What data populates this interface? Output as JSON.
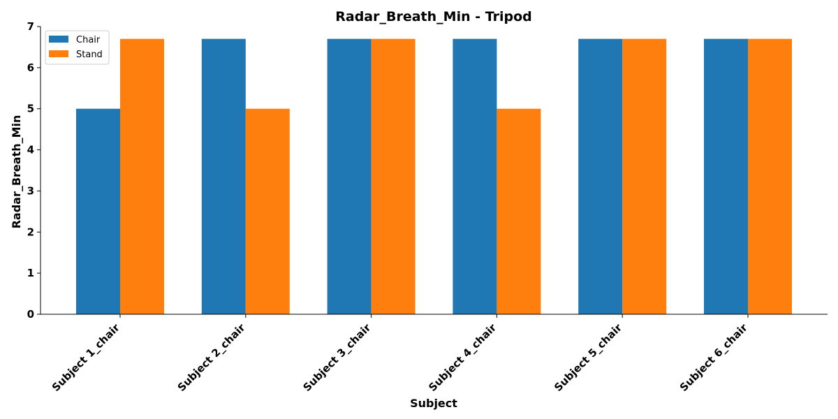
{
  "chart_data": {
    "type": "bar",
    "title": "Radar_Breath_Min - Tripod",
    "xlabel": "Subject",
    "ylabel": "Radar_Breath_Min",
    "categories": [
      "Subject 1_chair",
      "Subject 2_chair",
      "Subject 3_chair",
      "Subject 4_chair",
      "Subject 5_chair",
      "Subject 6_chair"
    ],
    "series": [
      {
        "name": "Chair",
        "color": "#1f77b4",
        "values": [
          5.0,
          6.7,
          6.7,
          6.7,
          6.7,
          6.7
        ]
      },
      {
        "name": "Stand",
        "color": "#ff7f0e",
        "values": [
          6.7,
          5.0,
          6.7,
          5.0,
          6.7,
          6.7
        ]
      }
    ],
    "ylim": [
      0,
      7
    ],
    "yticks": [
      0,
      1,
      2,
      3,
      4,
      5,
      6,
      7
    ],
    "grid": false,
    "legend": "top-left"
  }
}
